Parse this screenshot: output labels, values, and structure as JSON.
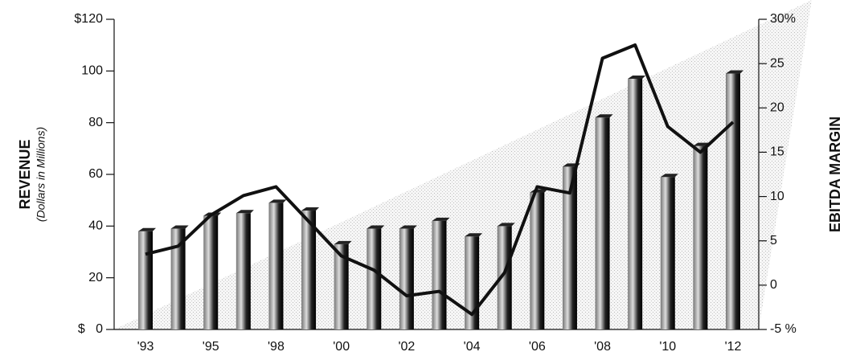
{
  "chart_data": {
    "type": "bar",
    "y_label": "REVENUE",
    "y_sublabel": "(Dollars in Millions)",
    "y2_label": "EBITDA MARGIN",
    "categories": [
      "'93",
      null,
      "'95",
      null,
      "'98",
      null,
      "'00",
      null,
      "'02",
      null,
      "'04",
      null,
      "'06",
      null,
      "'08",
      null,
      "'10",
      null,
      "'12"
    ],
    "series": [
      {
        "type": "bar",
        "color": "#222222",
        "values": [
          38,
          39,
          44,
          45,
          49,
          46,
          33,
          39,
          39,
          42,
          36,
          40,
          53,
          63,
          82,
          97,
          59,
          71,
          99
        ]
      },
      {
        "type": "line",
        "axis": "y2",
        "color": "#111111",
        "values": [
          3.5,
          4.4,
          7.9,
          10.1,
          11.1,
          7.2,
          3.3,
          1.7,
          -1.2,
          -0.7,
          -3.3,
          1.4,
          11.1,
          10.4,
          25.6,
          27.1,
          17.9,
          15.0,
          18.4
        ]
      }
    ],
    "ylim": [
      0,
      120
    ],
    "yticks": [
      {
        "value": 0,
        "label": "$   0"
      },
      20,
      40,
      60,
      80,
      100,
      {
        "value": 120,
        "label": "$120"
      }
    ],
    "y2lim": [
      -5,
      30
    ],
    "y2ticks": [
      {
        "value": -5,
        "label": "-5 %"
      },
      0,
      5,
      10,
      15,
      20,
      25,
      {
        "value": 30,
        "label": "30%"
      }
    ],
    "grid": false
  }
}
